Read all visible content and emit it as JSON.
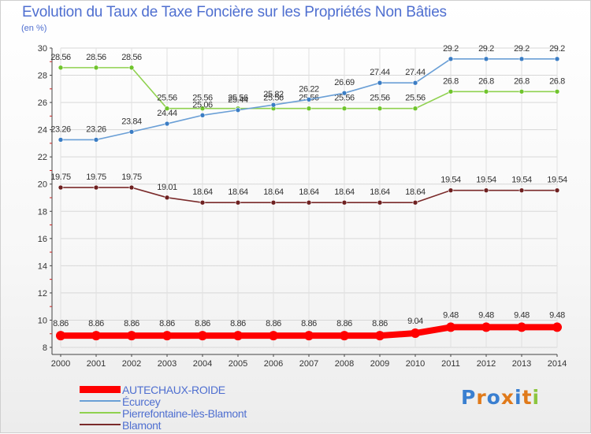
{
  "title": "Evolution du Taux de Taxe Foncière sur les Propriétés Non Bâties",
  "subtitle": "(en %)",
  "brand": {
    "text": "Proxiti",
    "letter_colors": [
      "#3a7fd0",
      "#e07a1a",
      "#3a7fd0",
      "#e07a1a",
      "#3a7fd0",
      "#e07a1a",
      "#8cc63f"
    ]
  },
  "chart_data": {
    "type": "line",
    "title": "Evolution du Taux de Taxe Foncière sur les Propriétés Non Bâties",
    "ylabel": "(en %)",
    "xlabel": "",
    "x": [
      "2000",
      "2001",
      "2002",
      "2003",
      "2004",
      "2005",
      "2006",
      "2007",
      "2008",
      "2009",
      "2010",
      "2011",
      "2012",
      "2013",
      "2014"
    ],
    "ylim": [
      8,
      30
    ],
    "yticks": [
      "8",
      "10",
      "12",
      "14",
      "16",
      "18",
      "20",
      "22",
      "24",
      "26",
      "28",
      "30"
    ],
    "grid": true,
    "series": [
      {
        "name": "AUTECHAUX-ROIDE",
        "color": "#ff0000",
        "emphasis": true,
        "values": [
          8.86,
          8.86,
          8.86,
          8.86,
          8.86,
          8.86,
          8.86,
          8.86,
          8.86,
          8.86,
          9.04,
          9.48,
          9.48,
          9.48,
          9.48
        ],
        "labels": [
          "8.86",
          "8.86",
          "8.86",
          "8.86",
          "8.86",
          "8.86",
          "8.86",
          "8.86",
          "8.86",
          "8.86",
          "9.04",
          "9.48",
          "9.48",
          "9.48",
          "9.48"
        ]
      },
      {
        "name": "Écurcey",
        "color": "#6a9fd6",
        "marker": "#3b7dc4",
        "values": [
          23.26,
          23.26,
          23.84,
          24.44,
          25.06,
          25.44,
          25.82,
          26.22,
          26.69,
          27.44,
          27.44,
          29.2,
          29.2,
          29.2,
          29.2
        ],
        "labels": [
          "23.26",
          "23.26",
          "23.84",
          "24.44",
          "25.06",
          "25.44",
          "25.82",
          "26.22",
          "26.69",
          "27.44",
          "27.44",
          "29.2",
          "29.2",
          "29.2",
          "29.2"
        ]
      },
      {
        "name": "Pierrefontaine-lès-Blamont",
        "color": "#8fd14f",
        "marker": "#6fc42c",
        "values": [
          28.56,
          28.56,
          28.56,
          25.56,
          25.56,
          25.56,
          25.56,
          25.56,
          25.56,
          25.56,
          25.56,
          26.8,
          26.8,
          26.8,
          26.8
        ],
        "labels": [
          "28.56",
          "28.56",
          "28.56",
          "25.56",
          "25.56",
          "25.56",
          "25.56",
          "25.56",
          "25.56",
          "25.56",
          "25.56",
          "26.8",
          "26.8",
          "26.8",
          "26.8"
        ]
      },
      {
        "name": "Blamont",
        "color": "#7a2a2a",
        "marker": "#6e2020",
        "values": [
          19.75,
          19.75,
          19.75,
          19.01,
          18.64,
          18.64,
          18.64,
          18.64,
          18.64,
          18.64,
          18.64,
          19.54,
          19.54,
          19.54,
          19.54
        ],
        "labels": [
          "19.75",
          "19.75",
          "19.75",
          "19.01",
          "18.64",
          "18.64",
          "18.64",
          "18.64",
          "18.64",
          "18.64",
          "18.64",
          "19.54",
          "19.54",
          "19.54",
          "19.54"
        ]
      }
    ]
  }
}
